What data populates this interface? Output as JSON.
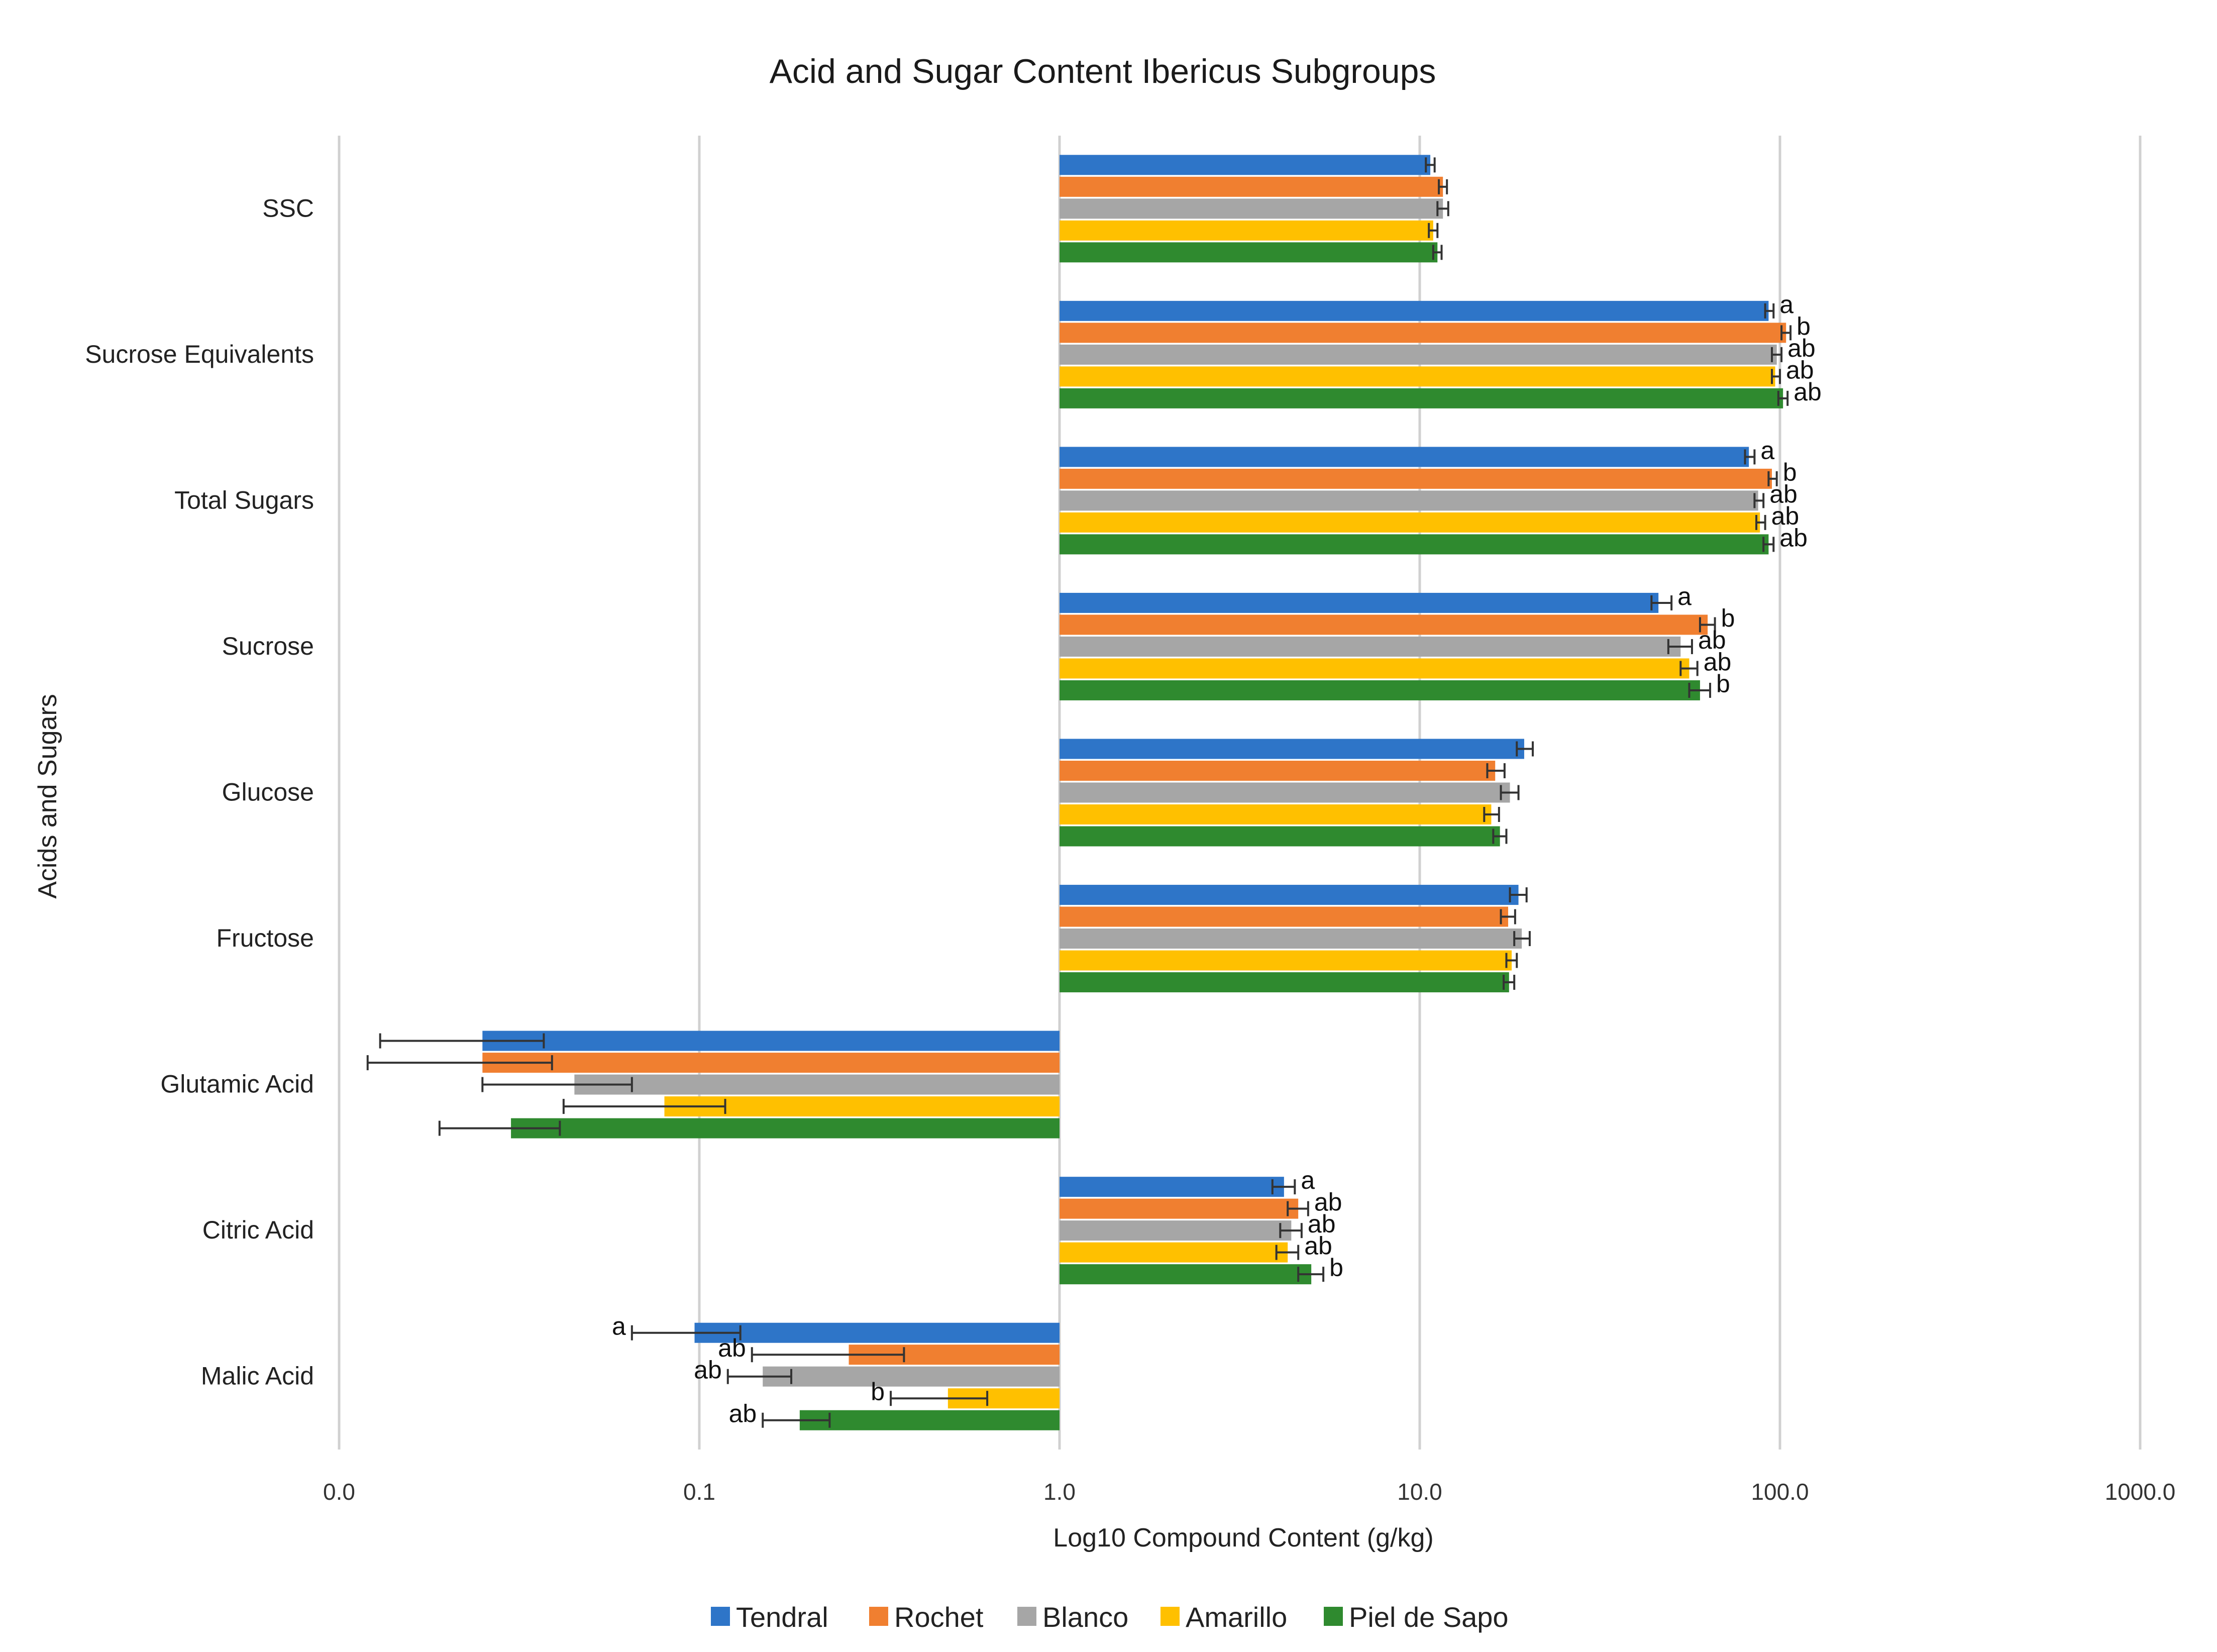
{
  "chart_data": {
    "type": "bar",
    "orientation": "horizontal",
    "scale": "log10",
    "base_value": 1.0,
    "title": "Acid and Sugar Content Ibericus Subgroups",
    "xlabel": "Log10 Compound Content (g/kg)",
    "ylabel": "Acids and Sugars",
    "xlim": [
      0.01,
      1000
    ],
    "x_ticks": [
      {
        "value": 0.01,
        "label": "0.0"
      },
      {
        "value": 0.1,
        "label": "0.1"
      },
      {
        "value": 1,
        "label": "1.0"
      },
      {
        "value": 10,
        "label": "10.0"
      },
      {
        "value": 100,
        "label": "100.0"
      },
      {
        "value": 1000,
        "label": "1000.0"
      }
    ],
    "categories": [
      "SSC",
      "Sucrose Equivalents",
      "Total Sugars",
      "Sucrose",
      "Glucose",
      "Fructose",
      "Glutamic Acid",
      "Citric Acid",
      "Malic Acid"
    ],
    "series": [
      {
        "name": "Tendral",
        "color": "#2e75c8",
        "values": [
          10.7,
          93,
          82,
          46,
          19.5,
          18.8,
          0.025,
          4.2,
          0.097
        ],
        "err_low": [
          10.4,
          91,
          80,
          44,
          18.6,
          17.8,
          0.013,
          3.9,
          0.065
        ],
        "err_high": [
          11.0,
          96,
          85,
          50,
          20.6,
          19.8,
          0.037,
          4.5,
          0.13
        ],
        "significance": [
          "",
          "a",
          "a",
          "a",
          "",
          "",
          "",
          "a",
          "a"
        ]
      },
      {
        "name": "Rochet",
        "color": "#f07f30",
        "values": [
          11.6,
          104,
          95,
          63,
          16.2,
          17.6,
          0.025,
          4.6,
          0.26
        ],
        "err_low": [
          11.3,
          101,
          93,
          60,
          15.4,
          16.8,
          0.012,
          4.3,
          0.14
        ],
        "err_high": [
          11.9,
          107,
          98,
          66,
          17.2,
          18.4,
          0.039,
          4.9,
          0.37
        ],
        "significance": [
          "",
          "b",
          "b",
          "b",
          "",
          "",
          "",
          "ab",
          "ab"
        ]
      },
      {
        "name": "Blanco",
        "color": "#a6a6a6",
        "values": [
          11.6,
          98,
          87,
          53,
          17.8,
          19.2,
          0.045,
          4.4,
          0.15
        ],
        "err_low": [
          11.2,
          95,
          85,
          49,
          16.8,
          18.3,
          0.025,
          4.1,
          0.12
        ],
        "err_high": [
          12.0,
          101,
          90,
          57,
          18.8,
          20.2,
          0.065,
          4.7,
          0.18
        ],
        "significance": [
          "",
          "ab",
          "ab",
          "ab",
          "",
          "",
          "",
          "ab",
          "ab"
        ]
      },
      {
        "name": "Amarillo",
        "color": "#ffc000",
        "values": [
          10.9,
          97,
          88,
          56,
          15.8,
          18.0,
          0.08,
          4.3,
          0.49
        ],
        "err_low": [
          10.6,
          95,
          86,
          53,
          15.1,
          17.4,
          0.042,
          4.0,
          0.34
        ],
        "err_high": [
          11.2,
          100,
          91,
          59,
          16.6,
          18.6,
          0.118,
          4.6,
          0.63
        ],
        "significance": [
          "",
          "ab",
          "ab",
          "ab",
          "",
          "",
          "",
          "ab",
          "b"
        ]
      },
      {
        "name": "Piel de Sapo",
        "color": "#2f8a2f",
        "values": [
          11.2,
          102,
          93,
          60,
          16.7,
          17.7,
          0.03,
          5.0,
          0.19
        ],
        "err_low": [
          10.9,
          99,
          90,
          56,
          16.0,
          17.1,
          0.019,
          4.6,
          0.15
        ],
        "err_high": [
          11.5,
          105,
          96,
          64,
          17.4,
          18.3,
          0.041,
          5.4,
          0.23
        ],
        "significance": [
          "",
          "ab",
          "ab",
          "b",
          "",
          "",
          "",
          "b",
          "ab"
        ]
      }
    ],
    "legend_position": "bottom",
    "grid": true
  }
}
